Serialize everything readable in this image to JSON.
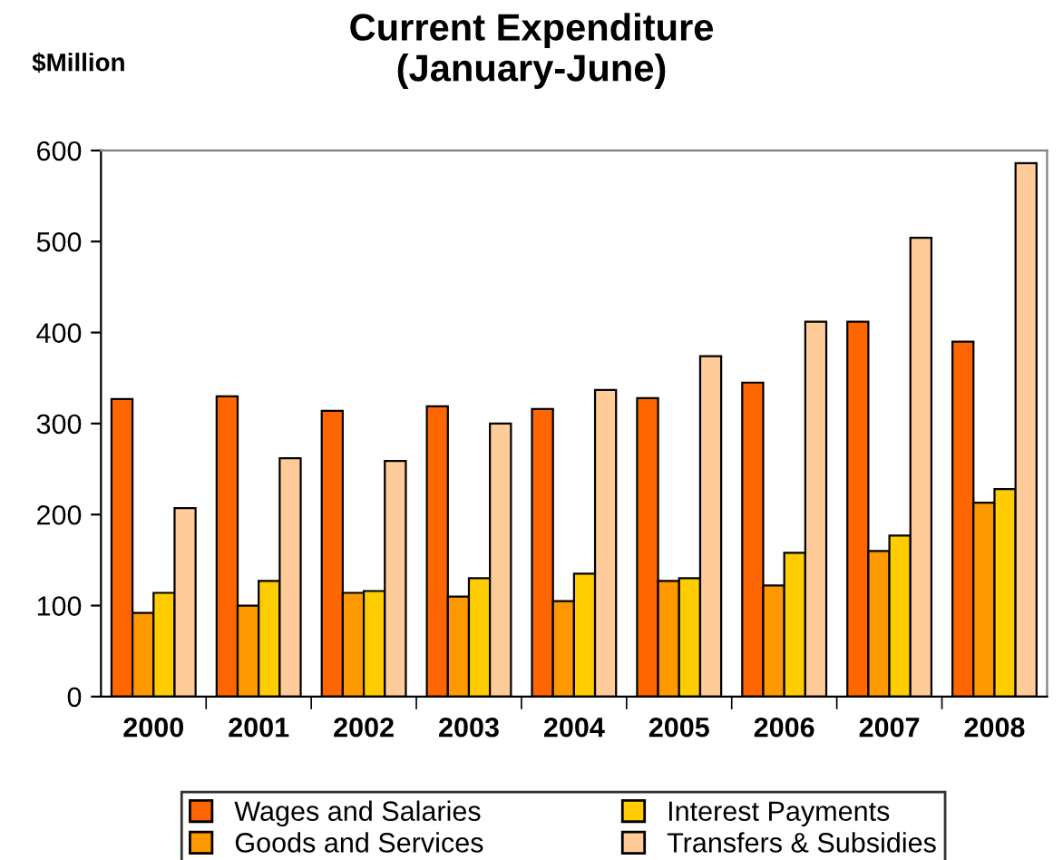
{
  "chart_data": {
    "type": "bar",
    "title": "Current Expenditure\n(January-June)",
    "ylabel": "$Million",
    "categories": [
      "2000",
      "2001",
      "2002",
      "2003",
      "2004",
      "2005",
      "2006",
      "2007",
      "2008"
    ],
    "series": [
      {
        "name": "Wages and Salaries",
        "color": "#ff6600",
        "values": [
          327,
          330,
          314,
          319,
          316,
          328,
          345,
          412,
          390
        ]
      },
      {
        "name": "Goods and Services",
        "color": "#ff9900",
        "values": [
          92,
          100,
          114,
          110,
          105,
          127,
          122,
          160,
          213
        ]
      },
      {
        "name": "Interest Payments",
        "color": "#ffcc00",
        "values": [
          114,
          127,
          116,
          130,
          135,
          130,
          158,
          177,
          228
        ]
      },
      {
        "name": "Transfers & Subsidies",
        "color": "#ffcc99",
        "values": [
          207,
          262,
          259,
          300,
          337,
          374,
          412,
          504,
          586
        ]
      }
    ],
    "ylim": [
      0,
      600
    ],
    "yticks": [
      0,
      100,
      200,
      300,
      400,
      500,
      600
    ],
    "grid": false,
    "legend": "bottom"
  }
}
